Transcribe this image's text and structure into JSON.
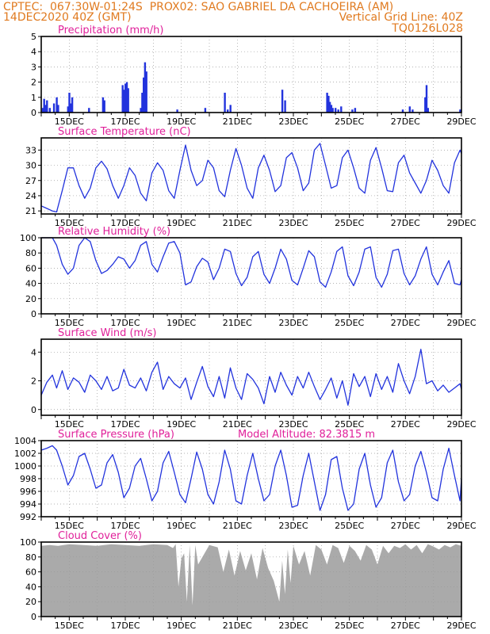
{
  "header": {
    "line1_left": "CPTEC:  067:30W-01:24S  PROX02: SAO GABRIEL DA CACHOEIRA (AM)",
    "line2_left": "14DEC2020 40Z (GMT)",
    "line2_right": "Vertical Grid Line: 40Z",
    "line3_right": "TQ0126L028"
  },
  "colors": {
    "header": "#e07a1f",
    "title": "#e0209a",
    "line": "#2233dd",
    "bar": "#2233dd",
    "cloud": "#aaaaaa",
    "grid": "#9a9a9a"
  },
  "chart_data": [
    {
      "type": "bar",
      "title": "Precipitation (mm/h)",
      "x_ticks": [
        "15DEC",
        "17DEC",
        "19DEC",
        "21DEC",
        "23DEC",
        "25DEC",
        "27DEC",
        "29DEC"
      ],
      "xlim_days": [
        14,
        29
      ],
      "ylim": [
        0,
        5
      ],
      "y_ticks": [
        0,
        1,
        2,
        3,
        4,
        5
      ],
      "x": [
        14.05,
        14.1,
        14.15,
        14.2,
        14.3,
        14.45,
        14.55,
        14.6,
        14.95,
        15.0,
        15.05,
        15.1,
        15.7,
        16.2,
        16.25,
        16.9,
        16.95,
        17.0,
        17.05,
        17.1,
        17.55,
        17.6,
        17.65,
        17.7,
        17.75,
        18.85,
        19.85,
        20.55,
        20.65,
        20.75,
        22.6,
        22.7,
        24.2,
        24.25,
        24.3,
        24.35,
        24.4,
        24.5,
        24.6,
        24.7,
        25.1,
        25.2,
        26.9,
        27.15,
        27.25,
        27.7,
        27.75,
        27.8,
        28.95
      ],
      "values": [
        0.3,
        0.9,
        0.5,
        0.8,
        0.3,
        0.6,
        1.0,
        0.5,
        0.4,
        1.3,
        0.6,
        1.0,
        0.3,
        1.0,
        0.8,
        1.8,
        1.5,
        1.9,
        2.0,
        1.6,
        0.3,
        1.3,
        2.3,
        3.3,
        2.7,
        0.2,
        0.3,
        1.3,
        0.2,
        0.5,
        1.5,
        0.8,
        1.3,
        1.1,
        0.7,
        0.5,
        0.3,
        0.3,
        0.2,
        0.4,
        0.2,
        0.3,
        0.2,
        0.4,
        0.2,
        1.0,
        1.8,
        0.3,
        0.2
      ]
    },
    {
      "type": "line",
      "title": "Surface Temperature (nC)",
      "x_ticks": [
        "15DEC",
        "17DEC",
        "19DEC",
        "21DEC",
        "23DEC",
        "25DEC",
        "27DEC",
        "29DEC"
      ],
      "xlim_days": [
        14,
        29
      ],
      "ylim": [
        20.4,
        35.4
      ],
      "y_ticks": [
        21,
        24,
        27,
        30,
        33
      ],
      "x": [
        14.0,
        14.2,
        14.4,
        14.55,
        14.75,
        14.95,
        15.15,
        15.35,
        15.55,
        15.75,
        15.95,
        16.15,
        16.35,
        16.55,
        16.75,
        16.95,
        17.15,
        17.35,
        17.55,
        17.75,
        17.95,
        18.15,
        18.35,
        18.55,
        18.75,
        18.95,
        19.15,
        19.35,
        19.55,
        19.75,
        19.95,
        20.15,
        20.35,
        20.55,
        20.75,
        20.95,
        21.15,
        21.35,
        21.55,
        21.75,
        21.95,
        22.15,
        22.35,
        22.55,
        22.75,
        22.95,
        23.15,
        23.35,
        23.55,
        23.75,
        23.95,
        24.15,
        24.35,
        24.55,
        24.75,
        24.95,
        25.15,
        25.35,
        25.55,
        25.75,
        25.95,
        26.15,
        26.35,
        26.55,
        26.75,
        26.95,
        27.15,
        27.35,
        27.55,
        27.75,
        27.95,
        28.15,
        28.35,
        28.55,
        28.75,
        28.95,
        29.0
      ],
      "values": [
        22.0,
        21.5,
        21.0,
        20.8,
        25.0,
        29.5,
        29.5,
        26.0,
        23.5,
        25.5,
        29.5,
        30.8,
        29.3,
        26.0,
        23.5,
        26.0,
        29.5,
        28.0,
        24.5,
        23.0,
        28.5,
        30.5,
        29.0,
        25.0,
        23.5,
        29.0,
        34.0,
        29.0,
        26.0,
        27.0,
        31.0,
        29.5,
        25.0,
        23.8,
        29.0,
        33.3,
        30.0,
        25.5,
        23.5,
        29.5,
        32.0,
        29.0,
        24.8,
        26.0,
        31.5,
        32.5,
        29.5,
        25.0,
        26.5,
        33.0,
        34.3,
        30.0,
        25.5,
        26.0,
        31.5,
        33.0,
        29.5,
        25.5,
        24.5,
        31.0,
        33.5,
        29.5,
        25.0,
        24.8,
        30.5,
        32.0,
        28.5,
        26.5,
        24.5,
        27.0,
        31.0,
        29.0,
        26.0,
        24.5,
        30.5,
        33.0,
        32.3
      ]
    },
    {
      "type": "line",
      "title": "Relative Humidity (%)",
      "x_ticks": [
        "15DEC",
        "17DEC",
        "19DEC",
        "21DEC",
        "23DEC",
        "25DEC",
        "27DEC",
        "29DEC"
      ],
      "xlim_days": [
        14,
        29
      ],
      "ylim": [
        0,
        100
      ],
      "y_ticks": [
        0,
        20,
        40,
        60,
        80,
        100
      ],
      "x": [
        14.0,
        14.2,
        14.4,
        14.55,
        14.75,
        14.95,
        15.15,
        15.35,
        15.55,
        15.75,
        15.95,
        16.15,
        16.35,
        16.55,
        16.75,
        16.95,
        17.15,
        17.35,
        17.55,
        17.75,
        17.95,
        18.15,
        18.35,
        18.55,
        18.75,
        18.95,
        19.15,
        19.35,
        19.55,
        19.75,
        19.95,
        20.15,
        20.35,
        20.55,
        20.75,
        20.95,
        21.15,
        21.35,
        21.55,
        21.75,
        21.95,
        22.15,
        22.35,
        22.55,
        22.75,
        22.95,
        23.15,
        23.35,
        23.55,
        23.75,
        23.95,
        24.15,
        24.35,
        24.55,
        24.75,
        24.95,
        25.15,
        25.35,
        25.55,
        25.75,
        25.95,
        26.15,
        26.35,
        26.55,
        26.75,
        26.95,
        27.15,
        27.35,
        27.55,
        27.75,
        27.95,
        28.15,
        28.35,
        28.55,
        28.75,
        28.95,
        29.0
      ],
      "values": [
        100,
        100,
        100,
        90,
        65,
        52,
        60,
        90,
        100,
        95,
        70,
        53,
        57,
        65,
        75,
        72,
        60,
        70,
        90,
        95,
        65,
        55,
        75,
        93,
        95,
        80,
        38,
        42,
        62,
        73,
        68,
        45,
        60,
        85,
        82,
        53,
        37,
        48,
        75,
        82,
        52,
        40,
        60,
        85,
        72,
        44,
        38,
        60,
        83,
        75,
        42,
        35,
        55,
        82,
        88,
        50,
        37,
        55,
        85,
        88,
        48,
        35,
        52,
        83,
        85,
        53,
        38,
        50,
        72,
        88,
        52,
        38,
        55,
        70,
        40,
        38,
        45
      ]
    },
    {
      "type": "line",
      "title": "Surface Wind (m/s)",
      "x_ticks": [
        "15DEC",
        "17DEC",
        "19DEC",
        "21DEC",
        "23DEC",
        "25DEC",
        "27DEC",
        "29DEC"
      ],
      "xlim_days": [
        14,
        29
      ],
      "ylim": [
        -0.4,
        4.9
      ],
      "y_ticks": [
        0,
        2,
        4
      ],
      "x": [
        14.0,
        14.2,
        14.4,
        14.55,
        14.75,
        14.95,
        15.15,
        15.35,
        15.55,
        15.75,
        15.95,
        16.15,
        16.35,
        16.55,
        16.75,
        16.95,
        17.15,
        17.35,
        17.55,
        17.75,
        17.95,
        18.15,
        18.35,
        18.55,
        18.75,
        18.95,
        19.15,
        19.35,
        19.55,
        19.75,
        19.95,
        20.15,
        20.35,
        20.55,
        20.75,
        20.95,
        21.15,
        21.35,
        21.55,
        21.75,
        21.95,
        22.15,
        22.35,
        22.55,
        22.75,
        22.95,
        23.15,
        23.35,
        23.55,
        23.75,
        23.95,
        24.15,
        24.35,
        24.55,
        24.75,
        24.95,
        25.15,
        25.35,
        25.55,
        25.75,
        25.95,
        26.15,
        26.35,
        26.55,
        26.75,
        26.95,
        27.15,
        27.35,
        27.55,
        27.75,
        27.95,
        28.15,
        28.35,
        28.55,
        28.75,
        28.95,
        29.0
      ],
      "values": [
        1.0,
        1.9,
        2.4,
        1.5,
        2.7,
        1.4,
        2.2,
        1.9,
        1.2,
        2.4,
        2.0,
        1.4,
        2.3,
        1.3,
        1.5,
        2.8,
        1.7,
        1.5,
        2.2,
        1.3,
        2.6,
        3.3,
        1.4,
        2.3,
        1.8,
        1.5,
        2.2,
        0.7,
        1.9,
        3.0,
        1.6,
        0.9,
        2.3,
        0.8,
        2.9,
        1.5,
        0.7,
        2.5,
        2.1,
        1.5,
        0.4,
        2.3,
        1.2,
        2.6,
        1.7,
        1.0,
        2.3,
        1.5,
        2.6,
        1.6,
        0.7,
        1.4,
        2.2,
        0.8,
        2.0,
        0.3,
        2.5,
        1.6,
        2.3,
        0.9,
        2.5,
        1.4,
        2.3,
        1.2,
        3.2,
        2.0,
        1.1,
        2.3,
        4.2,
        1.8,
        2.0,
        1.3,
        1.7,
        1.2,
        1.5,
        1.8,
        1.4
      ]
    },
    {
      "type": "line",
      "title": "Surface Pressure (hPa)",
      "annotation": "Model Altitude: 82.3815 m",
      "x_ticks": [
        "15DEC",
        "17DEC",
        "19DEC",
        "21DEC",
        "23DEC",
        "25DEC",
        "27DEC",
        "29DEC"
      ],
      "xlim_days": [
        14,
        29
      ],
      "ylim": [
        992,
        1004
      ],
      "y_ticks": [
        992,
        994,
        996,
        998,
        1000,
        1002,
        1004
      ],
      "x": [
        14.0,
        14.2,
        14.4,
        14.55,
        14.75,
        14.95,
        15.15,
        15.35,
        15.55,
        15.75,
        15.95,
        16.15,
        16.35,
        16.55,
        16.75,
        16.95,
        17.15,
        17.35,
        17.55,
        17.75,
        17.95,
        18.15,
        18.35,
        18.55,
        18.75,
        18.95,
        19.15,
        19.35,
        19.55,
        19.75,
        19.95,
        20.15,
        20.35,
        20.55,
        20.75,
        20.95,
        21.15,
        21.35,
        21.55,
        21.75,
        21.95,
        22.15,
        22.35,
        22.55,
        22.75,
        22.95,
        23.15,
        23.35,
        23.55,
        23.75,
        23.95,
        24.15,
        24.35,
        24.55,
        24.75,
        24.95,
        25.15,
        25.35,
        25.55,
        25.75,
        25.95,
        26.15,
        26.35,
        26.55,
        26.75,
        26.95,
        27.15,
        27.35,
        27.55,
        27.75,
        27.95,
        28.15,
        28.35,
        28.55,
        28.75,
        28.95,
        29.0
      ],
      "values": [
        1002.5,
        1002.8,
        1003.2,
        1002.5,
        1000.0,
        997.0,
        998.5,
        1001.5,
        1002.0,
        999.5,
        996.5,
        997.0,
        1000.5,
        1001.8,
        999.0,
        995.0,
        996.5,
        1000.0,
        1001.2,
        998.0,
        994.5,
        996.0,
        1000.5,
        1002.3,
        999.0,
        995.5,
        994.2,
        998.0,
        1002.2,
        999.5,
        995.5,
        994.0,
        997.5,
        1002.5,
        999.5,
        994.5,
        994.0,
        998.5,
        1002.0,
        998.0,
        994.5,
        995.5,
        1000.0,
        1002.5,
        998.5,
        993.5,
        993.8,
        998.5,
        1002.0,
        997.5,
        993.0,
        995.5,
        1001.0,
        1001.5,
        996.5,
        993.0,
        994.0,
        999.5,
        1002.0,
        997.0,
        993.5,
        995.0,
        1000.5,
        1002.5,
        997.5,
        994.5,
        995.5,
        1000.0,
        1002.3,
        999.0,
        995.0,
        994.5,
        999.5,
        1002.8,
        998.5,
        994.5,
        998.0
      ]
    },
    {
      "type": "area",
      "title": "Cloud Cover (%)",
      "x_ticks": [
        "15DEC",
        "17DEC",
        "19DEC",
        "21DEC",
        "23DEC",
        "25DEC",
        "27DEC",
        "29DEC"
      ],
      "xlim_days": [
        14,
        29
      ],
      "ylim": [
        0,
        100
      ],
      "y_ticks": [
        0,
        20,
        40,
        60,
        80,
        100
      ],
      "x": [
        14.0,
        14.3,
        14.6,
        15.0,
        15.5,
        16.0,
        16.5,
        17.0,
        17.5,
        18.0,
        18.5,
        18.7,
        18.8,
        18.9,
        19.0,
        19.1,
        19.2,
        19.3,
        19.4,
        19.5,
        19.6,
        20.0,
        20.3,
        20.5,
        20.7,
        20.9,
        21.1,
        21.3,
        21.5,
        21.7,
        21.9,
        22.1,
        22.3,
        22.5,
        22.6,
        22.7,
        22.8,
        22.9,
        23.0,
        23.2,
        23.4,
        23.6,
        23.8,
        24.0,
        24.2,
        24.4,
        24.6,
        24.8,
        25.0,
        25.2,
        25.4,
        25.6,
        25.8,
        26.0,
        26.2,
        26.4,
        26.6,
        26.8,
        27.0,
        27.2,
        27.4,
        27.6,
        27.8,
        28.0,
        28.2,
        28.4,
        28.6,
        28.8,
        29.0
      ],
      "values": [
        95,
        96,
        95,
        97,
        96,
        95,
        97,
        96,
        95,
        97,
        96,
        92,
        97,
        40,
        78,
        85,
        20,
        96,
        15,
        96,
        70,
        96,
        93,
        60,
        90,
        55,
        88,
        62,
        85,
        50,
        92,
        65,
        48,
        20,
        75,
        30,
        90,
        45,
        95,
        70,
        88,
        55,
        96,
        90,
        70,
        96,
        92,
        72,
        95,
        88,
        75,
        96,
        90,
        70,
        95,
        85,
        95,
        92,
        97,
        90,
        96,
        85,
        97,
        94,
        90,
        96,
        93,
        97,
        95
      ]
    }
  ]
}
